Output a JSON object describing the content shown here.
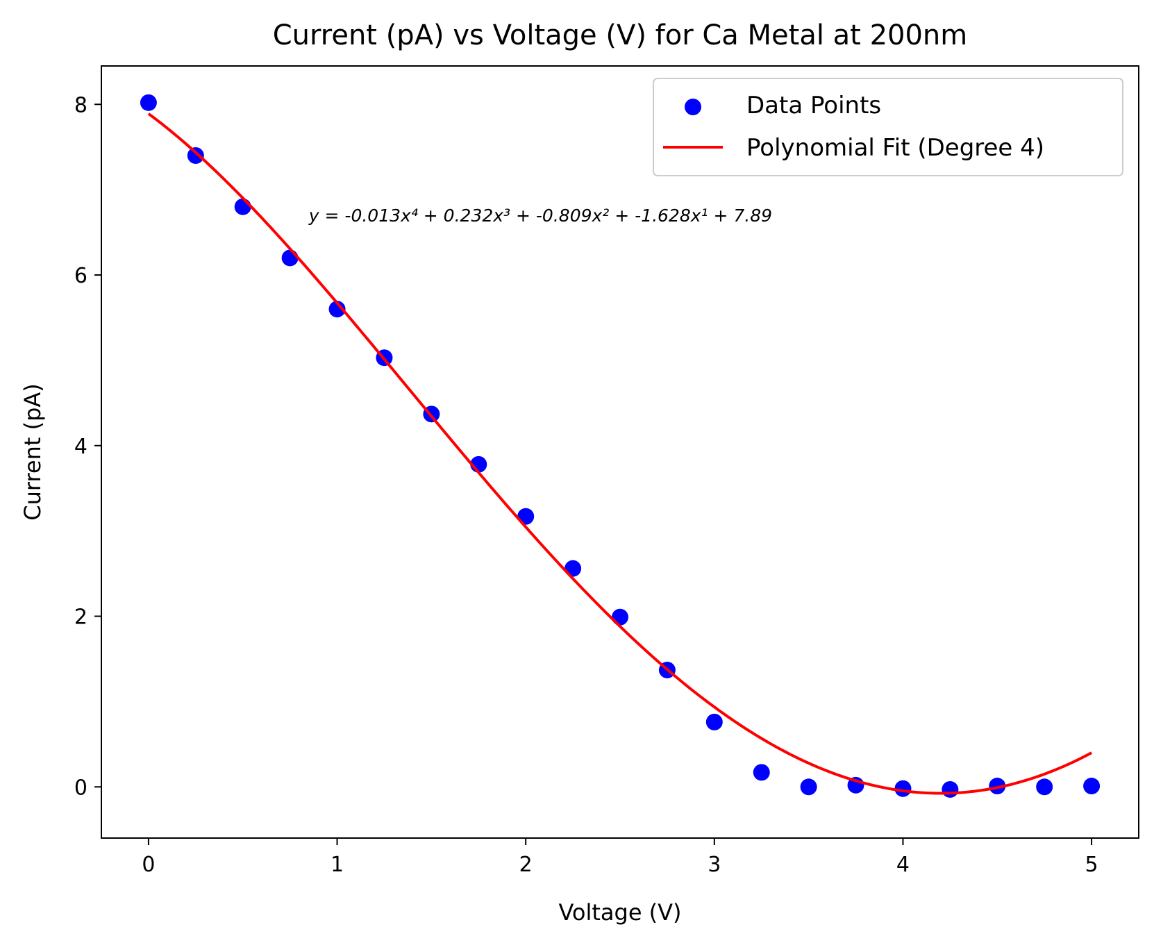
{
  "chart_data": {
    "type": "scatter",
    "title": "Current (pA) vs Voltage (V) for Ca Metal at 200nm",
    "xlabel": "Voltage (V)",
    "ylabel": "Current (pA)",
    "xlim": [
      -0.25,
      5.25
    ],
    "ylim": [
      -0.6,
      8.45
    ],
    "xticks": [
      0,
      1,
      2,
      3,
      4,
      5
    ],
    "yticks": [
      0,
      2,
      4,
      6,
      8
    ],
    "grid": false,
    "legend_position": "top-right",
    "series": [
      {
        "name": "Data Points",
        "kind": "scatter",
        "color": "#0000ff",
        "x": [
          0,
          0.25,
          0.5,
          0.75,
          1.0,
          1.25,
          1.5,
          1.75,
          2.0,
          2.25,
          2.5,
          2.75,
          3.0,
          3.25,
          3.5,
          3.75,
          4.0,
          4.25,
          4.5,
          4.75,
          5.0
        ],
        "y": [
          8.02,
          7.4,
          6.8,
          6.2,
          5.6,
          5.03,
          4.37,
          3.78,
          3.17,
          2.56,
          1.99,
          1.37,
          0.76,
          0.17,
          0.0,
          0.02,
          -0.02,
          -0.03,
          0.01,
          0.0,
          0.01
        ]
      },
      {
        "name": "Polynomial Fit (Degree 4)",
        "kind": "line",
        "color": "#ff0000",
        "coefficients": [
          -0.013,
          0.232,
          -0.809,
          -1.628,
          7.89
        ],
        "x_range": [
          0,
          5
        ]
      }
    ],
    "annotation": {
      "text": "y = -0.013x⁴ + 0.232x³ + -0.809x² + -1.628x¹ + 7.89",
      "x": 0.85,
      "y": 6.7
    }
  }
}
